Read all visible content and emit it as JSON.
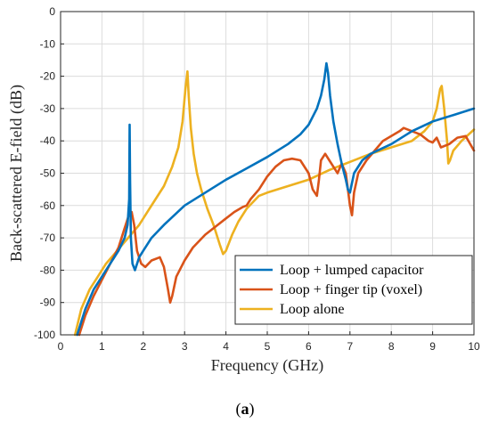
{
  "chart_data": {
    "type": "line",
    "xlabel": "Frequency (GHz)",
    "ylabel": "Back-scattered E-field (dB)",
    "xlim": [
      0,
      10
    ],
    "ylim": [
      -100,
      0
    ],
    "xticks": [
      "0",
      "1",
      "2",
      "3",
      "4",
      "5",
      "6",
      "7",
      "8",
      "9",
      "10"
    ],
    "yticks": [
      "0",
      "-10",
      "-20",
      "-30",
      "-40",
      "-50",
      "-60",
      "-70",
      "-80",
      "-90",
      "-100"
    ],
    "grid": true,
    "legend_position": "bottom-right",
    "caption": "(a)",
    "series": [
      {
        "name": "Loop + lumped capacitor",
        "color": "#0072bd",
        "x": [
          0.4,
          0.6,
          0.8,
          1.0,
          1.2,
          1.4,
          1.55,
          1.62,
          1.66,
          1.67,
          1.68,
          1.7,
          1.74,
          1.8,
          1.9,
          2.0,
          2.2,
          2.5,
          3.0,
          3.5,
          4.0,
          4.5,
          5.0,
          5.5,
          5.8,
          6.0,
          6.2,
          6.3,
          6.38,
          6.43,
          6.47,
          6.52,
          6.6,
          6.7,
          6.8,
          6.9,
          6.95,
          7.0,
          7.1,
          7.3,
          7.5,
          8.0,
          8.5,
          9.0,
          9.5,
          10.0
        ],
        "values": [
          -100,
          -92,
          -86,
          -82,
          -78,
          -74,
          -70,
          -66,
          -58,
          -35,
          -52,
          -70,
          -78,
          -80,
          -76,
          -74,
          -70,
          -66,
          -60,
          -56,
          -52,
          -48.5,
          -45,
          -41,
          -38,
          -35,
          -30,
          -26,
          -21,
          -16,
          -19,
          -26,
          -34,
          -41,
          -47,
          -52,
          -55,
          -56,
          -50,
          -46,
          -44,
          -41,
          -37,
          -34,
          -32,
          -30
        ]
      },
      {
        "name": "Loop + finger tip (voxel)",
        "color": "#d95319",
        "x": [
          0.45,
          0.6,
          0.8,
          1.0,
          1.2,
          1.4,
          1.55,
          1.65,
          1.72,
          1.78,
          1.85,
          1.95,
          2.05,
          2.2,
          2.4,
          2.5,
          2.6,
          2.65,
          2.7,
          2.8,
          3.0,
          3.2,
          3.5,
          3.8,
          4.0,
          4.2,
          4.4,
          4.5,
          4.6,
          4.8,
          5.0,
          5.2,
          5.4,
          5.6,
          5.8,
          6.0,
          6.1,
          6.2,
          6.25,
          6.3,
          6.4,
          6.5,
          6.6,
          6.7,
          6.8,
          6.9,
          7.0,
          7.05,
          7.1,
          7.2,
          7.4,
          7.6,
          7.8,
          8.0,
          8.2,
          8.3,
          8.5,
          8.7,
          8.9,
          9.0,
          9.1,
          9.2,
          9.4,
          9.6,
          9.8,
          10.0
        ],
        "values": [
          -100,
          -94,
          -88,
          -83,
          -78,
          -73,
          -67,
          -63,
          -62,
          -66,
          -74,
          -78,
          -79,
          -77,
          -76,
          -79,
          -86,
          -90,
          -88,
          -82,
          -77,
          -73,
          -69,
          -66,
          -64,
          -62,
          -60.5,
          -60,
          -58,
          -55,
          -51,
          -48,
          -46,
          -45.5,
          -46,
          -50,
          -55,
          -57,
          -52,
          -46,
          -44,
          -46,
          -48,
          -50,
          -47,
          -50,
          -60,
          -63,
          -56,
          -50,
          -46,
          -43,
          -40,
          -38.5,
          -37,
          -36,
          -37,
          -38,
          -40,
          -40.5,
          -39,
          -42,
          -41,
          -39,
          -38.5,
          -43
        ]
      },
      {
        "name": "Loop alone",
        "color": "#edb120",
        "x": [
          0.35,
          0.5,
          0.7,
          0.9,
          1.1,
          1.3,
          1.5,
          1.7,
          1.9,
          2.1,
          2.3,
          2.5,
          2.7,
          2.85,
          2.95,
          3.02,
          3.07,
          3.1,
          3.15,
          3.22,
          3.3,
          3.4,
          3.55,
          3.7,
          3.85,
          3.93,
          4.0,
          4.15,
          4.3,
          4.5,
          4.8,
          5.0,
          5.5,
          6.0,
          6.5,
          7.0,
          7.5,
          8.0,
          8.5,
          8.8,
          9.0,
          9.1,
          9.18,
          9.22,
          9.28,
          9.35,
          9.38,
          9.42,
          9.5,
          9.7,
          10.0
        ],
        "values": [
          -100,
          -92,
          -86,
          -82,
          -78,
          -75,
          -72,
          -69,
          -66,
          -62,
          -58,
          -54,
          -48,
          -42,
          -34,
          -24,
          -18.5,
          -26,
          -36,
          -44,
          -50,
          -55,
          -61,
          -66,
          -72,
          -75,
          -74,
          -69,
          -65,
          -61,
          -57,
          -56,
          -54,
          -52,
          -49,
          -46.5,
          -44,
          -42,
          -40,
          -37,
          -34,
          -30,
          -24,
          -23,
          -30,
          -40,
          -47,
          -46,
          -43,
          -40,
          -36.5
        ]
      }
    ]
  }
}
